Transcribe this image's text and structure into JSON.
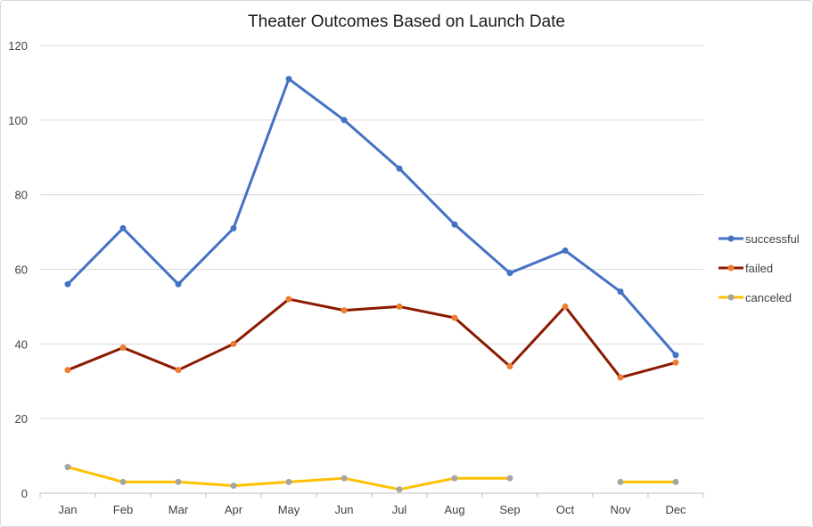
{
  "chart_data": {
    "type": "line",
    "title": "Theater Outcomes Based on Launch Date",
    "xlabel": "",
    "ylabel": "",
    "categories": [
      "Jan",
      "Feb",
      "Mar",
      "Apr",
      "May",
      "Jun",
      "Jul",
      "Aug",
      "Sep",
      "Oct",
      "Nov",
      "Dec"
    ],
    "ylim": [
      0,
      120
    ],
    "yticks": [
      0,
      20,
      40,
      60,
      80,
      100,
      120
    ],
    "grid": true,
    "legend_position": "right",
    "series": [
      {
        "name": "successful",
        "color": "#4472c4",
        "marker_color": "#4472c4",
        "values": [
          56,
          71,
          56,
          71,
          111,
          100,
          87,
          72,
          59,
          65,
          54,
          37
        ]
      },
      {
        "name": "failed",
        "color": "#8b1a00",
        "marker_color": "#ed7d31",
        "values": [
          33,
          39,
          33,
          40,
          52,
          49,
          50,
          47,
          34,
          50,
          31,
          35
        ]
      },
      {
        "name": "canceled",
        "color": "#ffc000",
        "marker_color": "#a5a5a5",
        "values": [
          7,
          3,
          3,
          2,
          3,
          4,
          1,
          4,
          4,
          null,
          3,
          3
        ]
      }
    ]
  }
}
